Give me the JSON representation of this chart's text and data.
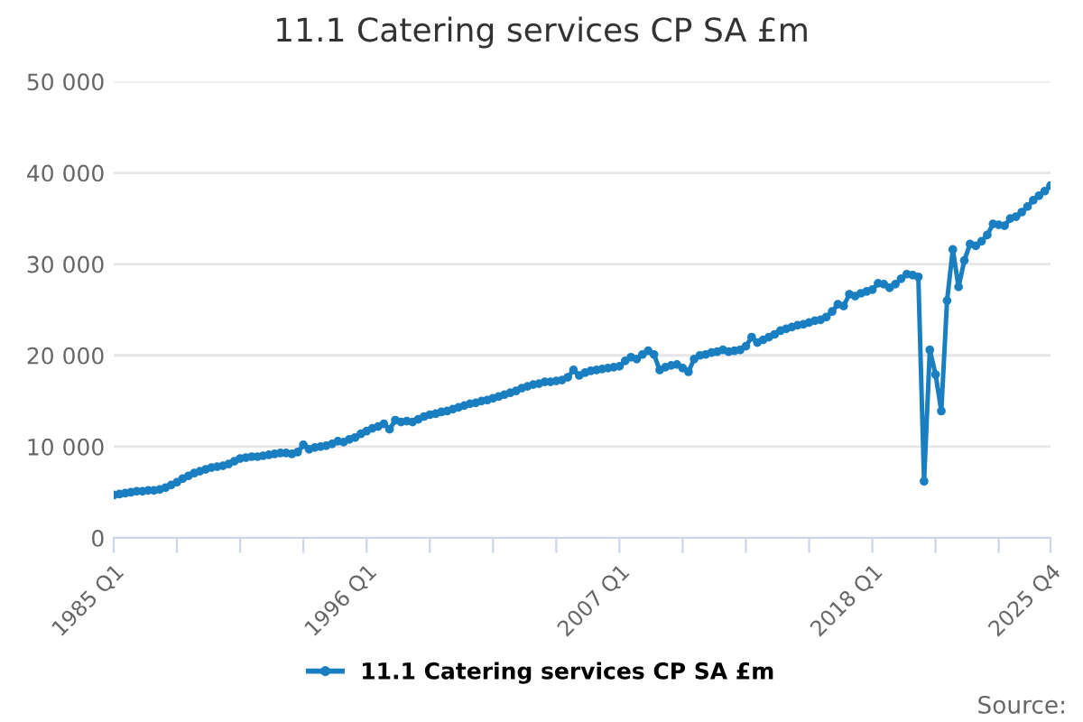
{
  "chart_data": {
    "type": "line",
    "title": "11.1 Catering services CP SA £m",
    "categories": [
      "1985 Q1",
      null,
      null,
      null,
      null,
      null,
      null,
      null,
      null,
      null,
      null,
      null,
      null,
      null,
      null,
      null,
      null,
      null,
      null,
      null,
      null,
      null,
      null,
      null,
      null,
      null,
      null,
      null,
      null,
      null,
      null,
      null,
      null,
      null,
      null,
      null,
      null,
      null,
      null,
      null,
      null,
      null,
      null,
      null,
      "1996 Q1",
      null,
      null,
      null,
      null,
      null,
      null,
      null,
      null,
      null,
      null,
      null,
      null,
      null,
      null,
      null,
      null,
      null,
      null,
      null,
      null,
      null,
      null,
      null,
      null,
      null,
      null,
      null,
      null,
      null,
      null,
      null,
      null,
      null,
      null,
      null,
      null,
      null,
      null,
      null,
      null,
      null,
      null,
      null,
      "2007 Q1",
      null,
      null,
      null,
      null,
      null,
      null,
      null,
      null,
      null,
      null,
      null,
      null,
      null,
      null,
      null,
      null,
      null,
      null,
      null,
      null,
      null,
      null,
      null,
      null,
      null,
      null,
      null,
      null,
      null,
      null,
      null,
      null,
      null,
      null,
      null,
      null,
      null,
      null,
      null,
      null,
      null,
      null,
      null,
      "2018 Q1",
      null,
      null,
      null,
      null,
      null,
      null,
      null,
      null,
      null,
      null,
      null,
      null,
      null,
      null,
      null,
      null,
      null,
      null,
      null,
      null,
      null,
      null,
      null,
      null,
      null,
      null,
      null,
      null,
      null,
      null,
      "2025 Q4"
    ],
    "series": [
      {
        "name": "11.1 Catering services CP SA £m",
        "color": "#1a7fc1",
        "values": [
          4700,
          4800,
          4900,
          5000,
          5100,
          5100,
          5200,
          5200,
          5300,
          5500,
          5800,
          6100,
          6500,
          6800,
          7100,
          7300,
          7500,
          7700,
          7800,
          7900,
          8100,
          8400,
          8700,
          8800,
          8900,
          8900,
          9000,
          9100,
          9200,
          9300,
          9300,
          9200,
          9400,
          10200,
          9700,
          9900,
          10000,
          10100,
          10300,
          10600,
          10500,
          10800,
          11000,
          11400,
          11700,
          12000,
          12200,
          12500,
          11900,
          12900,
          12700,
          12800,
          12700,
          13000,
          13300,
          13500,
          13600,
          13800,
          13900,
          14100,
          14300,
          14500,
          14700,
          14800,
          15000,
          15100,
          15300,
          15500,
          15700,
          15900,
          16100,
          16400,
          16600,
          16800,
          16900,
          17100,
          17100,
          17200,
          17300,
          17600,
          18400,
          17800,
          18100,
          18300,
          18400,
          18500,
          18600,
          18700,
          18800,
          19400,
          19800,
          19600,
          20100,
          20500,
          20100,
          18400,
          18700,
          18900,
          19000,
          18600,
          18200,
          19600,
          20000,
          20100,
          20300,
          20400,
          20600,
          20400,
          20500,
          20600,
          21000,
          22000,
          21400,
          21700,
          22000,
          22300,
          22700,
          22900,
          23100,
          23300,
          23400,
          23600,
          23800,
          23900,
          24200,
          24800,
          25600,
          25400,
          26700,
          26500,
          26800,
          27000,
          27200,
          27900,
          27800,
          27400,
          27800,
          28400,
          28900,
          28800,
          28600,
          6200,
          20600,
          17900,
          13900,
          26000,
          31600,
          27500,
          30400,
          32200,
          32000,
          32500,
          33200,
          34400,
          34300,
          34200,
          35000,
          35200,
          35700,
          36300,
          37000,
          37500,
          38000,
          38600
        ]
      }
    ],
    "ylim": [
      0,
      50000
    ],
    "yticks": [
      0,
      {
        "value": 10000,
        "label": "10 000"
      },
      {
        "value": 20000,
        "label": "20 000"
      },
      {
        "value": 30000,
        "label": "30 000"
      },
      {
        "value": 40000,
        "label": "40 000"
      },
      {
        "value": 50000,
        "label": "50 000"
      }
    ],
    "grid": "y",
    "legend": "bottom",
    "marker": "circle",
    "line_style": "solid",
    "annotations": [
      "Source:"
    ]
  }
}
